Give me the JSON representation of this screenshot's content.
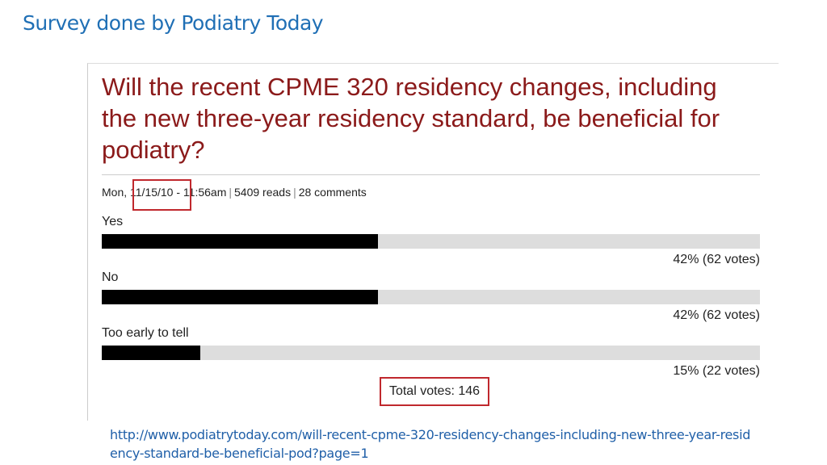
{
  "slide": {
    "title": "Survey done by Podiatry Today",
    "source_url": "http://www.podiatrytoday.com/will-recent-cpme-320-residency-changes-including-new-three-year-residency-standard-be-beneficial-pod?page=1"
  },
  "poll": {
    "question": "Will the recent CPME 320 residency changes, including the new three-year residency standard, be beneficial for podiatry?",
    "meta": {
      "day": "Mon,",
      "date": "11/15/10 -",
      "time": "11:56am",
      "reads": "5409 reads",
      "comments": "28 comments"
    },
    "options": [
      {
        "label": "Yes",
        "percent": 42,
        "votes": 62,
        "result": "42% (62 votes)"
      },
      {
        "label": "No",
        "percent": 42,
        "votes": 62,
        "result": "42% (62 votes)"
      },
      {
        "label": "Too early to tell",
        "percent": 15,
        "votes": 22,
        "result": "15% (22 votes)"
      }
    ],
    "total": "Total votes: 146"
  }
}
